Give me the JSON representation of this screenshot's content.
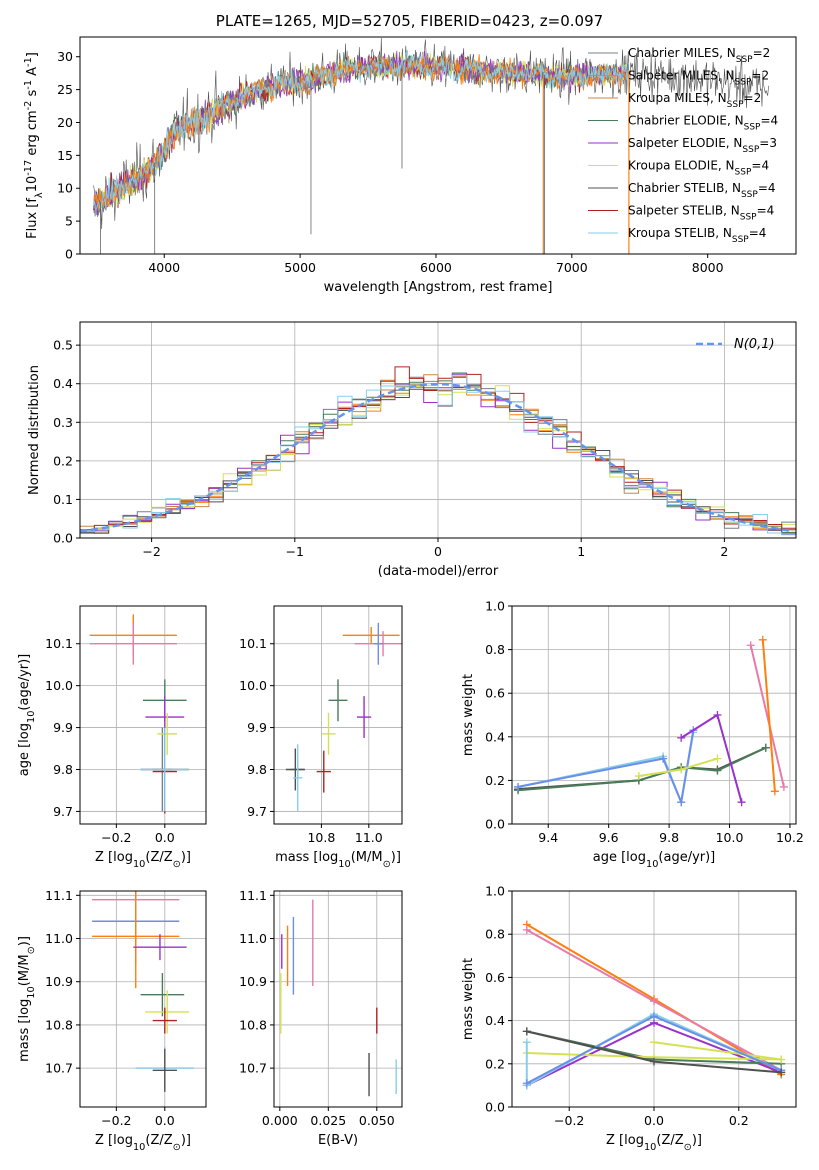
{
  "title": "PLATE=1265, MJD=52705, FIBERID=0423, z=0.097",
  "colors": {
    "s0": "#708090",
    "s1": "#ff7f0e",
    "s2": "#cd853f",
    "s3": "#4a7c59",
    "s4": "#9932cc",
    "s5": "#d4e157",
    "s6": "#505050",
    "s7": "#b22222",
    "s8": "#87ceeb",
    "ref": "#6495ed",
    "grid": "#b0b0b0",
    "pinkS": "#e879a8",
    "blueS": "#6b8ee8",
    "greenS": "#4d8a57"
  },
  "legend_labels": [
    "Chabrier MILES, N$_{SSP}$=2",
    "Salpeter MILES, N$_{SSP}$=2",
    "Kroupa MILES, N$_{SSP}$=2",
    "Chabrier ELODIE, N$_{SSP}$=4",
    "Salpeter ELODIE, N$_{SSP}$=3",
    "Kroupa ELODIE, N$_{SSP}$=4",
    "Chabrier STELIB, N$_{SSP}$=4",
    "Salpeter STELIB, N$_{SSP}$=4",
    "Kroupa STELIB, N$_{SSP}$=4"
  ],
  "chart_data": [
    {
      "id": "spectrum",
      "type": "line",
      "xlabel": "wavelength [Angstrom, rest frame]",
      "ylabel": "Flux [f$_{\\lambda}$10$^{-17}$ erg cm$^{-2}$ s$^{-1}$ A$^{-1}$]",
      "xlim": [
        3380,
        8650
      ],
      "ylim": [
        0,
        33
      ],
      "xticks": [
        4000,
        5000,
        6000,
        7000,
        8000
      ],
      "yticks": [
        0,
        5,
        10,
        15,
        20,
        25,
        30
      ],
      "legend_position": "top-right",
      "grid": false,
      "continuum": [
        [
          3500,
          7.5
        ],
        [
          3600,
          9
        ],
        [
          3750,
          11
        ],
        [
          3900,
          13
        ],
        [
          4000,
          16
        ],
        [
          4100,
          19
        ],
        [
          4300,
          21
        ],
        [
          4500,
          23
        ],
        [
          4700,
          25
        ],
        [
          4900,
          26
        ],
        [
          5100,
          26.5
        ],
        [
          5300,
          28
        ],
        [
          5500,
          28.5
        ],
        [
          5800,
          28.5
        ],
        [
          6000,
          28.5
        ],
        [
          6300,
          28
        ],
        [
          6600,
          27.5
        ],
        [
          7000,
          27
        ],
        [
          7400,
          27.5
        ],
        [
          7800,
          27
        ],
        [
          8200,
          26
        ],
        [
          8500,
          25
        ]
      ]
    },
    {
      "id": "residuals",
      "type": "histogram",
      "xlabel": "(data-model)/error",
      "ylabel": "Normed distribution",
      "xlim": [
        -2.5,
        2.5
      ],
      "ylim": [
        0,
        0.56
      ],
      "xticks": [
        -2,
        -1,
        0,
        1,
        2
      ],
      "yticks": [
        0.0,
        0.1,
        0.2,
        0.3,
        0.4,
        0.5
      ],
      "grid": true,
      "reference_label": "$\\mathcal{N}(0,1)$",
      "bin_width": 0.1
    },
    {
      "id": "age_vs_Z",
      "type": "errorbar",
      "xlabel": "Z [log$_{10}$(Z/Z$_\\odot$)]",
      "ylabel": "age  [log$_{10}$(age/yr)]",
      "xlim": [
        -0.35,
        0.17
      ],
      "ylim": [
        9.67,
        10.19
      ],
      "xticks": [
        -0.2,
        0.0
      ],
      "yticks": [
        9.7,
        9.8,
        9.9,
        10.0,
        10.1
      ],
      "grid": true,
      "points": [
        {
          "x": -0.01,
          "y": 9.8,
          "dx": 0.04,
          "dy": 0.1,
          "c": "s0"
        },
        {
          "x": -0.13,
          "y": 10.12,
          "dx": 0.18,
          "dy": 0.05,
          "c": "s1"
        },
        {
          "x": -0.13,
          "y": 10.1,
          "dx": 0.18,
          "dy": 0.05,
          "c": "pinkS"
        },
        {
          "x": 0.0,
          "y": 9.965,
          "dx": 0.09,
          "dy": 0.05,
          "c": "s3"
        },
        {
          "x": 0.0,
          "y": 9.925,
          "dx": 0.08,
          "dy": 0.05,
          "c": "s4"
        },
        {
          "x": 0.01,
          "y": 9.885,
          "dx": 0.04,
          "dy": 0.05,
          "c": "s5"
        },
        {
          "x": 0.0,
          "y": 9.8,
          "dx": 0.1,
          "dy": 0.1,
          "c": "s6"
        },
        {
          "x": 0.0,
          "y": 9.795,
          "dx": 0.05,
          "dy": 0.1,
          "c": "s7"
        },
        {
          "x": 0.0,
          "y": 9.8,
          "dx": 0.1,
          "dy": 0.1,
          "c": "s8"
        }
      ]
    },
    {
      "id": "age_vs_mass",
      "type": "errorbar",
      "xlabel": "mass [log$_{10}$(M/M$_\\odot$)]",
      "ylabel": "",
      "xlim": [
        10.6,
        11.14
      ],
      "ylim": [
        9.67,
        10.19
      ],
      "xticks": [
        10.8,
        11.0
      ],
      "yticks": [
        9.7,
        9.8,
        9.9,
        10.0,
        10.1
      ],
      "grid": true,
      "points": [
        {
          "x": 10.7,
          "y": 9.8,
          "dx": 0.03,
          "dy": 0.02,
          "c": "s0"
        },
        {
          "x": 11.01,
          "y": 10.12,
          "dx": 0.12,
          "dy": 0.02,
          "c": "s1"
        },
        {
          "x": 11.06,
          "y": 10.1,
          "dx": 0.12,
          "dy": 0.03,
          "c": "pinkS"
        },
        {
          "x": 11.04,
          "y": 10.1,
          "dx": 0.02,
          "dy": 0.05,
          "c": "blueS"
        },
        {
          "x": 10.87,
          "y": 9.965,
          "dx": 0.04,
          "dy": 0.05,
          "c": "s3"
        },
        {
          "x": 10.98,
          "y": 9.925,
          "dx": 0.03,
          "dy": 0.05,
          "c": "s4"
        },
        {
          "x": 10.83,
          "y": 9.885,
          "dx": 0.03,
          "dy": 0.05,
          "c": "s5"
        },
        {
          "x": 10.69,
          "y": 9.8,
          "dx": 0.04,
          "dy": 0.05,
          "c": "s6"
        },
        {
          "x": 10.81,
          "y": 9.795,
          "dx": 0.03,
          "dy": 0.05,
          "c": "s7"
        },
        {
          "x": 10.7,
          "y": 9.78,
          "dx": 0.02,
          "dy": 0.08,
          "c": "s8"
        }
      ]
    },
    {
      "id": "weight_vs_age",
      "type": "line",
      "xlabel": "age  [log$_{10}$(age/yr)]",
      "ylabel": "mass weight",
      "xlim": [
        9.28,
        10.22
      ],
      "ylim": [
        0,
        1.0
      ],
      "xticks": [
        9.4,
        9.6,
        9.8,
        10.0,
        10.2
      ],
      "yticks": [
        0.0,
        0.2,
        0.4,
        0.6,
        0.8,
        1.0
      ],
      "grid": true,
      "series": [
        {
          "c": "s6",
          "x": [
            9.3,
            9.7,
            9.84,
            9.96,
            10.12
          ],
          "y": [
            0.16,
            0.2,
            0.26,
            0.25,
            0.35
          ]
        },
        {
          "c": "s3",
          "x": [
            9.3,
            9.7,
            9.84,
            9.96,
            10.12
          ],
          "y": [
            0.155,
            0.2,
            0.26,
            0.245,
            0.35
          ]
        },
        {
          "c": "s8",
          "x": [
            9.3,
            9.78,
            9.84,
            9.88
          ],
          "y": [
            0.17,
            0.31,
            0.1,
            0.42
          ]
        },
        {
          "c": "blueS",
          "x": [
            9.3,
            9.78,
            9.84,
            9.88
          ],
          "y": [
            0.17,
            0.3,
            0.1,
            0.43
          ]
        },
        {
          "c": "s5",
          "x": [
            9.7,
            9.84,
            9.96
          ],
          "y": [
            0.22,
            0.25,
            0.3
          ]
        },
        {
          "c": "s4",
          "x": [
            9.84,
            9.96,
            10.04
          ],
          "y": [
            0.395,
            0.5,
            0.1
          ]
        },
        {
          "c": "pinkS",
          "x": [
            10.07,
            10.18
          ],
          "y": [
            0.82,
            0.17
          ]
        },
        {
          "c": "s1",
          "x": [
            10.11,
            10.15
          ],
          "y": [
            0.845,
            0.15
          ]
        }
      ]
    },
    {
      "id": "mass_vs_Z",
      "type": "errorbar",
      "xlabel": "Z [log$_{10}$(Z/Z$_\\odot$)]",
      "ylabel": "mass [log$_{10}$(M/M$_\\odot$)]",
      "xlim": [
        -0.35,
        0.17
      ],
      "ylim": [
        10.61,
        11.11
      ],
      "xticks": [
        -0.2,
        0.0
      ],
      "yticks": [
        10.7,
        10.8,
        10.9,
        11.0,
        11.1
      ],
      "grid": true,
      "points": [
        {
          "x": -0.12,
          "y": 11.09,
          "dx": 0.18,
          "dy": 0.02,
          "c": "pinkS"
        },
        {
          "x": -0.12,
          "y": 11.04,
          "dx": 0.18,
          "dy": 0.1,
          "c": "blueS"
        },
        {
          "x": -0.12,
          "y": 11.005,
          "dx": 0.18,
          "dy": 0.12,
          "c": "s1"
        },
        {
          "x": -0.02,
          "y": 10.98,
          "dx": 0.11,
          "dy": 0.03,
          "c": "s4"
        },
        {
          "x": -0.01,
          "y": 10.87,
          "dx": 0.09,
          "dy": 0.05,
          "c": "s3"
        },
        {
          "x": 0.01,
          "y": 10.83,
          "dx": 0.09,
          "dy": 0.05,
          "c": "s5"
        },
        {
          "x": 0.0,
          "y": 10.81,
          "dx": 0.05,
          "dy": 0.03,
          "c": "s7"
        },
        {
          "x": 0.0,
          "y": 10.7,
          "dx": 0.12,
          "dy": 0.05,
          "c": "s8"
        },
        {
          "x": 0.0,
          "y": 10.695,
          "dx": 0.05,
          "dy": 0.05,
          "c": "s6"
        }
      ]
    },
    {
      "id": "mass_vs_ebv",
      "type": "errorbar",
      "xlabel": "E(B-V)",
      "ylabel": "",
      "xlim": [
        -0.003,
        0.063
      ],
      "ylim": [
        10.61,
        11.11
      ],
      "xticks": [
        0.0,
        0.025,
        0.05
      ],
      "yticks": [
        10.7,
        10.8,
        10.9,
        11.0,
        11.1
      ],
      "grid": true,
      "points": [
        {
          "x": 0.0005,
          "y": 10.85,
          "dx": 0,
          "dy": 0.07,
          "c": "s5"
        },
        {
          "x": 0.001,
          "y": 10.97,
          "dx": 0,
          "dy": 0.04,
          "c": "s4"
        },
        {
          "x": 0.004,
          "y": 10.96,
          "dx": 0,
          "dy": 0.07,
          "c": "s1"
        },
        {
          "x": 0.007,
          "y": 10.96,
          "dx": 0,
          "dy": 0.09,
          "c": "blueS"
        },
        {
          "x": 0.017,
          "y": 10.99,
          "dx": 0,
          "dy": 0.1,
          "c": "pinkS"
        },
        {
          "x": 0.046,
          "y": 10.685,
          "dx": 0,
          "dy": 0.05,
          "c": "s6"
        },
        {
          "x": 0.05,
          "y": 10.81,
          "dx": 0,
          "dy": 0.03,
          "c": "s7"
        },
        {
          "x": 0.06,
          "y": 10.68,
          "dx": 0,
          "dy": 0.04,
          "c": "s8"
        }
      ]
    },
    {
      "id": "weight_vs_Z",
      "type": "line",
      "xlabel": "Z [log$_{10}$(Z/Z$_\\odot$)]",
      "ylabel": "mass weight",
      "xlim": [
        -0.335,
        0.335
      ],
      "ylim": [
        0,
        1.0
      ],
      "xticks": [
        -0.2,
        0.0,
        0.2
      ],
      "yticks": [
        0.0,
        0.2,
        0.4,
        0.6,
        0.8,
        1.0
      ],
      "grid": true,
      "series": [
        {
          "c": "s1",
          "x": [
            -0.3,
            0.0,
            0.3
          ],
          "y": [
            0.845,
            0.5,
            0.15
          ]
        },
        {
          "c": "pinkS",
          "x": [
            -0.3,
            0.0,
            0.3
          ],
          "y": [
            0.82,
            0.49,
            0.17
          ]
        },
        {
          "c": "s4",
          "x": [
            -0.3,
            0.0,
            0.3
          ],
          "y": [
            0.1,
            0.39,
            0.16
          ]
        },
        {
          "c": "s3",
          "x": [
            -0.3,
            0.0,
            0.3
          ],
          "y": [
            0.35,
            0.22,
            0.2
          ]
        },
        {
          "c": "s5",
          "x": [
            -0.3,
            0.0,
            0.3
          ],
          "y": [
            0.25,
            0.23,
            0.22
          ]
        },
        {
          "c": "s5",
          "x": [
            0.0,
            0.3
          ],
          "y": [
            0.3,
            0.22
          ]
        },
        {
          "c": "s8",
          "x": [
            -0.3,
            -0.3,
            0.0,
            0.3
          ],
          "y": [
            0.3,
            0.1,
            0.43,
            0.17
          ]
        },
        {
          "c": "blueS",
          "x": [
            -0.3,
            0.0,
            0.3
          ],
          "y": [
            0.11,
            0.42,
            0.17
          ]
        },
        {
          "c": "s6",
          "x": [
            -0.3,
            0.0,
            0.3
          ],
          "y": [
            0.35,
            0.21,
            0.16
          ]
        }
      ]
    }
  ]
}
